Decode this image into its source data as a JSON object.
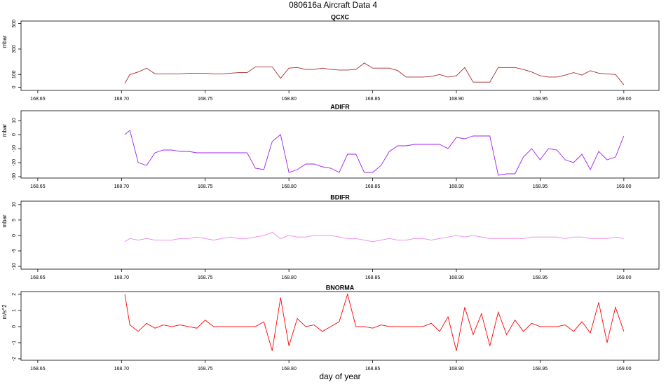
{
  "title": "080616a   Aircraft Data 4",
  "chart_data": [
    {
      "type": "line",
      "title": "QCXC",
      "ylabel": "mbar",
      "color": "#a52a2a",
      "xlim": [
        168.64,
        169.021
      ],
      "ylim": [
        -25,
        520
      ],
      "xticks": [
        168.65,
        {
          "value": 168.7,
          "label": "168.70"
        },
        168.75,
        {
          "value": 168.8,
          "label": "168.80"
        },
        168.85,
        {
          "value": 168.9,
          "label": "168.90"
        },
        168.95,
        {
          "value": 169,
          "label": "169.00"
        }
      ],
      "yticks": [
        0,
        100,
        300,
        500
      ],
      "x": [
        168.702,
        168.705,
        168.71,
        168.715,
        168.72,
        168.725,
        168.73,
        168.735,
        168.74,
        168.745,
        168.75,
        168.755,
        168.76,
        168.765,
        168.77,
        168.775,
        168.78,
        168.785,
        168.79,
        168.795,
        168.8,
        168.805,
        168.81,
        168.815,
        168.82,
        168.825,
        168.83,
        168.835,
        168.84,
        168.845,
        168.85,
        168.855,
        168.86,
        168.865,
        168.87,
        168.875,
        168.88,
        168.885,
        168.89,
        168.895,
        168.9,
        168.905,
        168.91,
        168.915,
        168.92,
        168.925,
        168.93,
        168.935,
        168.94,
        168.945,
        168.95,
        168.955,
        168.96,
        168.965,
        168.97,
        168.975,
        168.98,
        168.985,
        168.99,
        168.995,
        169.0
      ],
      "values": [
        30,
        100,
        120,
        150,
        105,
        105,
        105,
        105,
        110,
        110,
        110,
        105,
        105,
        110,
        115,
        115,
        160,
        160,
        160,
        70,
        150,
        155,
        140,
        140,
        150,
        140,
        135,
        135,
        140,
        190,
        150,
        150,
        150,
        130,
        80,
        80,
        80,
        85,
        100,
        80,
        90,
        155,
        40,
        40,
        40,
        155,
        155,
        155,
        140,
        120,
        90,
        80,
        80,
        95,
        115,
        95,
        130,
        110,
        105,
        100,
        20
      ]
    },
    {
      "type": "line",
      "title": "ADIFR",
      "ylabel": "mbar",
      "color": "#a020f0",
      "xlim": [
        168.64,
        169.021
      ],
      "ylim": [
        -31,
        17
      ],
      "xticks": [
        168.65,
        {
          "value": 168.7,
          "label": "168.70"
        },
        168.75,
        {
          "value": 168.8,
          "label": "168.80"
        },
        168.85,
        {
          "value": 168.9,
          "label": "168.90"
        },
        168.95,
        {
          "value": 169,
          "label": "169.00"
        }
      ],
      "yticks": [
        -30,
        -20,
        -10,
        0,
        10
      ],
      "x": [
        168.702,
        168.705,
        168.71,
        168.715,
        168.72,
        168.725,
        168.73,
        168.735,
        168.74,
        168.745,
        168.75,
        168.755,
        168.76,
        168.765,
        168.77,
        168.775,
        168.78,
        168.785,
        168.79,
        168.795,
        168.8,
        168.805,
        168.81,
        168.815,
        168.82,
        168.825,
        168.83,
        168.835,
        168.84,
        168.845,
        168.85,
        168.855,
        168.86,
        168.865,
        168.87,
        168.875,
        168.88,
        168.885,
        168.89,
        168.895,
        168.9,
        168.905,
        168.91,
        168.915,
        168.92,
        168.925,
        168.93,
        168.935,
        168.94,
        168.945,
        168.95,
        168.955,
        168.96,
        168.965,
        168.97,
        168.975,
        168.98,
        168.985,
        168.99,
        168.995,
        169.0
      ],
      "values": [
        0,
        3,
        -20,
        -22,
        -13,
        -11,
        -11,
        -12,
        -12,
        -13,
        -13,
        -13,
        -13,
        -13,
        -13,
        -13,
        -24,
        -25,
        -5,
        0,
        -27,
        -25,
        -21,
        -21,
        -23,
        -24,
        -27,
        -14,
        -14,
        -27,
        -27,
        -22,
        -12,
        -8,
        -8,
        -7,
        -7,
        -7,
        -7,
        -10,
        -2,
        -3,
        -1,
        -1,
        -1,
        -29,
        -28,
        -28,
        -16,
        -10,
        -18,
        -10,
        -11,
        -18,
        -20,
        -14,
        -25,
        -12,
        -18,
        -16,
        -1
      ]
    },
    {
      "type": "line",
      "title": "BDIFR",
      "ylabel": "mbar",
      "color": "#ee82ee",
      "xlim": [
        168.64,
        169.021
      ],
      "ylim": [
        -10.9,
        11.1
      ],
      "xticks": [
        168.65,
        {
          "value": 168.7,
          "label": "168.70"
        },
        168.75,
        {
          "value": 168.8,
          "label": "168.80"
        },
        168.85,
        {
          "value": 168.9,
          "label": "168.90"
        },
        168.95,
        {
          "value": 169,
          "label": "169.00"
        }
      ],
      "yticks": [
        -10,
        -5,
        0,
        5,
        10
      ],
      "x": [
        168.702,
        168.705,
        168.71,
        168.715,
        168.72,
        168.725,
        168.73,
        168.735,
        168.74,
        168.745,
        168.75,
        168.755,
        168.76,
        168.765,
        168.77,
        168.775,
        168.78,
        168.785,
        168.79,
        168.795,
        168.8,
        168.805,
        168.81,
        168.815,
        168.82,
        168.825,
        168.83,
        168.835,
        168.84,
        168.845,
        168.85,
        168.855,
        168.86,
        168.865,
        168.87,
        168.875,
        168.88,
        168.885,
        168.89,
        168.895,
        168.9,
        168.905,
        168.91,
        168.915,
        168.92,
        168.925,
        168.93,
        168.935,
        168.94,
        168.945,
        168.95,
        168.955,
        168.96,
        168.965,
        168.97,
        168.975,
        168.98,
        168.985,
        168.99,
        168.995,
        169.0
      ],
      "values": [
        -2,
        -1,
        -1.5,
        -1,
        -1.5,
        -1.5,
        -1.5,
        -1,
        -1,
        -0.5,
        -1,
        -1.5,
        -1,
        -0.5,
        -1,
        -1,
        -0.5,
        0,
        1,
        -1,
        0,
        -0.5,
        -0.5,
        0,
        0,
        0,
        -0.5,
        -1,
        -1,
        -1.5,
        -2,
        -1.5,
        -1,
        -1.5,
        -1.5,
        -1,
        -1,
        -1.5,
        -1,
        -0.5,
        0,
        -0.5,
        0,
        -0.5,
        -1,
        -1,
        -1,
        -1,
        -1,
        -0.5,
        -0.5,
        -0.5,
        -0.5,
        -1,
        -0.5,
        -0.5,
        -1,
        -1,
        -1,
        -0.5,
        -1
      ]
    },
    {
      "type": "line",
      "title": "BNORMA",
      "ylabel": "m/s^2",
      "xlabel": "day of year",
      "color": "#ff0000",
      "xlim": [
        168.64,
        169.021
      ],
      "ylim": [
        -2.09,
        2.17
      ],
      "xticks": [
        168.65,
        {
          "value": 168.7,
          "label": "168.70"
        },
        168.75,
        {
          "value": 168.8,
          "label": "168.80"
        },
        168.85,
        {
          "value": 168.9,
          "label": "168.90"
        },
        168.95,
        {
          "value": 169,
          "label": "169.00"
        }
      ],
      "yticks": [
        -2,
        -1,
        0,
        1,
        2
      ],
      "x": [
        168.702,
        168.705,
        168.71,
        168.715,
        168.72,
        168.725,
        168.73,
        168.735,
        168.74,
        168.745,
        168.75,
        168.755,
        168.76,
        168.765,
        168.77,
        168.775,
        168.78,
        168.785,
        168.79,
        168.795,
        168.8,
        168.805,
        168.81,
        168.815,
        168.82,
        168.825,
        168.83,
        168.835,
        168.84,
        168.845,
        168.85,
        168.855,
        168.86,
        168.865,
        168.87,
        168.875,
        168.88,
        168.885,
        168.89,
        168.895,
        168.9,
        168.905,
        168.91,
        168.915,
        168.92,
        168.925,
        168.93,
        168.935,
        168.94,
        168.945,
        168.95,
        168.955,
        168.96,
        168.965,
        168.97,
        168.975,
        168.98,
        168.985,
        168.99,
        168.995,
        169.0
      ],
      "values": [
        2,
        0.1,
        -0.3,
        0.2,
        -0.1,
        0.1,
        0,
        0.1,
        0,
        -0.1,
        0.4,
        0,
        0,
        0,
        0,
        0,
        0,
        0.3,
        -1.5,
        1.8,
        -1.2,
        0.5,
        0,
        0.1,
        -0.3,
        0,
        0.3,
        2,
        0,
        0,
        -0.1,
        0.1,
        0,
        0,
        0,
        0,
        0,
        0.2,
        -0.3,
        0.6,
        -1.5,
        1.2,
        -0.5,
        0.8,
        -1.2,
        0.9,
        -0.5,
        0.4,
        -0.3,
        0.2,
        0,
        0,
        0,
        0.1,
        -0.3,
        0.3,
        -0.4,
        1.5,
        -1,
        1.2,
        -0.3
      ]
    }
  ]
}
